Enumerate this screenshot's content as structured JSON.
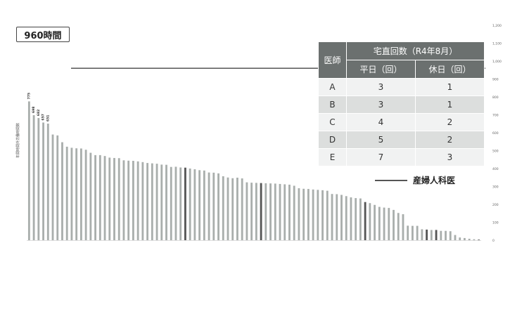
{
  "threshold": {
    "label": "960時間",
    "value": 960
  },
  "table": {
    "corner": "医師",
    "group_header": "宅直回数（R4年8月）",
    "col_headers": [
      "平日（回）",
      "休日（回）"
    ],
    "rows": [
      {
        "id": "A",
        "weekday": "3",
        "holiday": "1"
      },
      {
        "id": "B",
        "weekday": "3",
        "holiday": "1"
      },
      {
        "id": "C",
        "weekday": "4",
        "holiday": "2"
      },
      {
        "id": "D",
        "weekday": "5",
        "holiday": "2"
      },
      {
        "id": "E",
        "weekday": "7",
        "holiday": "3"
      }
    ]
  },
  "legend": {
    "label": "産婦人科医",
    "color": "#555555"
  },
  "colors": {
    "bar": "#a9aeac",
    "highlight_bar": "#555555",
    "threshold_line": "#444444"
  },
  "chart_data": {
    "type": "bar",
    "ylabel": "年間時間外労働時間数",
    "ylim": [
      0,
      1200
    ],
    "yticks": [
      0,
      100,
      200,
      300,
      400,
      500,
      600,
      700,
      800,
      900,
      1000,
      1100,
      1200
    ],
    "values": [
      775,
      698,
      682,
      657,
      651,
      590,
      585,
      547,
      522,
      516,
      513,
      512,
      505,
      488,
      475,
      475,
      470,
      461,
      459,
      458,
      446,
      444,
      443,
      440,
      436,
      431,
      429,
      427,
      422,
      421,
      409,
      410,
      406,
      405,
      400,
      396,
      391,
      389,
      378,
      377,
      373,
      357,
      350,
      346,
      349,
      345,
      323,
      321,
      320,
      319,
      318,
      317,
      316,
      314,
      312,
      310,
      304,
      290,
      287,
      286,
      283,
      281,
      279,
      276,
      258,
      257,
      253,
      246,
      239,
      235,
      233,
      213,
      207,
      197,
      186,
      182,
      180,
      169,
      152,
      145,
      81,
      80,
      80,
      61,
      59,
      57,
      57,
      52,
      52,
      50,
      29,
      15,
      12,
      8,
      5,
      3
    ],
    "highlight_indices": [
      33,
      49,
      71,
      84,
      86,
      95
    ],
    "value_labels": [
      {
        "index": 0,
        "text": "775"
      },
      {
        "index": 1,
        "text": "698"
      },
      {
        "index": 2,
        "text": "682"
      },
      {
        "index": 3,
        "text": "657"
      },
      {
        "index": 4,
        "text": "651"
      }
    ]
  }
}
